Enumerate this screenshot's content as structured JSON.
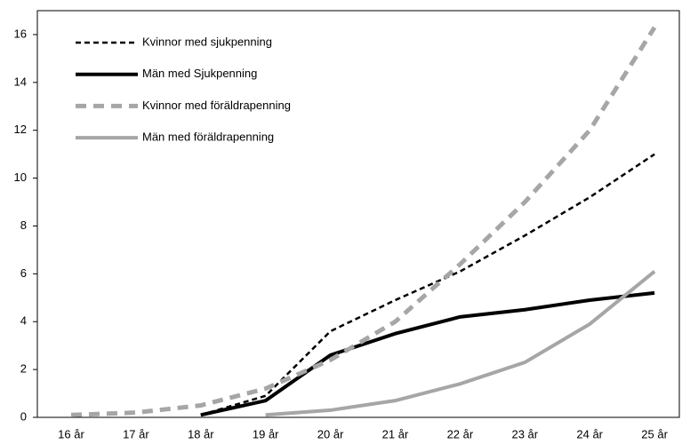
{
  "chart_data": {
    "type": "line",
    "categories": [
      "16 år",
      "17 år",
      "18 år",
      "19 år",
      "20 år",
      "21 år",
      "22 år",
      "23 år",
      "24 år",
      "25 år"
    ],
    "series": [
      {
        "name": "Kvinnor med sjukpenning",
        "color": "#000000",
        "dashed": true,
        "width": 2.5,
        "values": [
          null,
          null,
          0.1,
          0.9,
          3.6,
          4.9,
          6.1,
          7.6,
          9.2,
          11.0
        ]
      },
      {
        "name": "Män med Sjukpenning",
        "color": "#000000",
        "dashed": false,
        "width": 4,
        "values": [
          null,
          null,
          0.1,
          0.7,
          2.6,
          3.5,
          4.2,
          4.5,
          4.9,
          5.2
        ]
      },
      {
        "name": "Kvinnor med föräldrapenning",
        "color": "#a6a6a6",
        "dashed": true,
        "width": 5,
        "values": [
          0.1,
          0.2,
          0.5,
          1.2,
          2.4,
          4.0,
          6.4,
          9.0,
          12.0,
          16.3
        ]
      },
      {
        "name": "Män med föräldrapenning",
        "color": "#a6a6a6",
        "dashed": false,
        "width": 4,
        "values": [
          null,
          null,
          null,
          0.1,
          0.3,
          0.7,
          1.4,
          2.3,
          3.9,
          6.1
        ]
      }
    ],
    "ylim": [
      0,
      17
    ],
    "yticks": [
      0,
      2,
      4,
      6,
      8,
      10,
      12,
      14,
      16
    ],
    "legend": "upper left",
    "grid": false
  }
}
